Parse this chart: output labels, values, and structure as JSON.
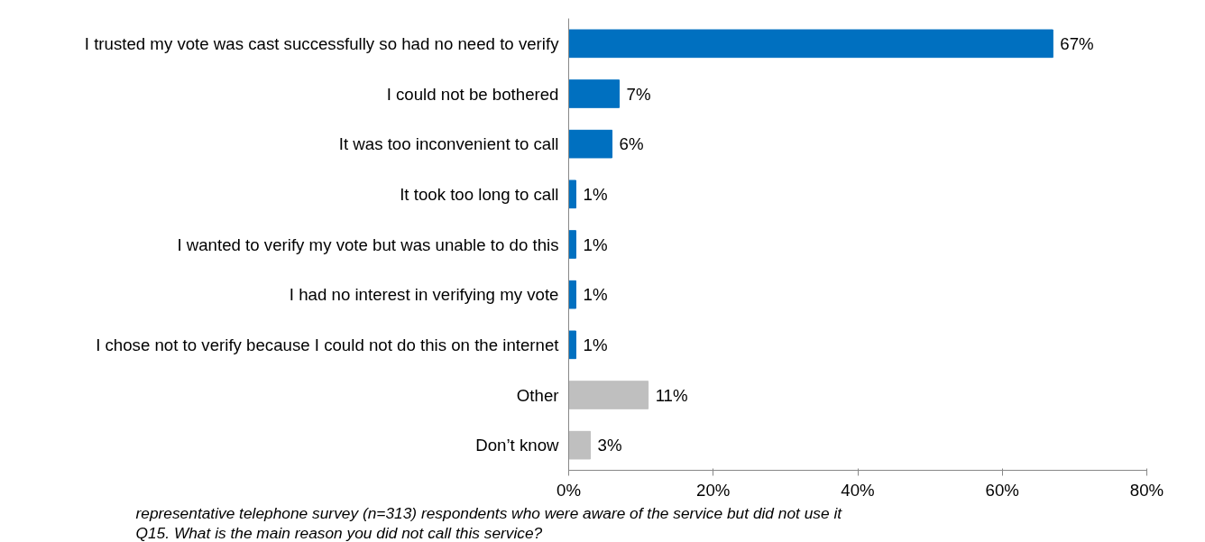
{
  "chart_data": {
    "type": "bar",
    "orientation": "horizontal",
    "categories": [
      "I trusted my vote was cast successfully so had no need to verify",
      "I could not be bothered",
      "It was too inconvenient to call",
      "It took too long to call",
      "I wanted to verify my vote but was unable to do this",
      "I had no interest in verifying my vote",
      "I chose not to verify because I could not do this on the internet",
      "Other",
      "Don’t know"
    ],
    "values": [
      67,
      7,
      6,
      1,
      1,
      1,
      1,
      11,
      3
    ],
    "colors": [
      "#0070c0",
      "#0070c0",
      "#0070c0",
      "#0070c0",
      "#0070c0",
      "#0070c0",
      "#0070c0",
      "#bfbfbf",
      "#bfbfbf"
    ],
    "value_labels": [
      "67%",
      "7%",
      "6%",
      "1%",
      "1%",
      "1%",
      "1%",
      "11%",
      "3%"
    ],
    "xlim": [
      0,
      80
    ],
    "xticks": [
      {
        "value": 0,
        "label": "0%"
      },
      {
        "value": 20,
        "label": "20%"
      },
      {
        "value": 40,
        "label": "40%"
      },
      {
        "value": 60,
        "label": "60%"
      },
      {
        "value": 80,
        "label": "80%"
      }
    ],
    "grid": false,
    "annotations": [
      "representative telephone survey (n=313) respondents who were aware of the service but did not use it",
      "Q15. What is the main reason you did not call this service?"
    ]
  }
}
